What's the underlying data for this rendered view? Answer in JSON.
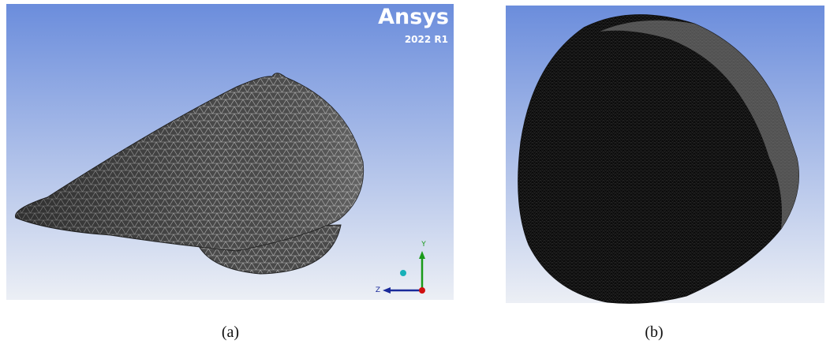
{
  "panels": [
    {
      "logo": {
        "name": "Ansys",
        "version": "2022 R1"
      },
      "axes": {
        "y": "Y",
        "z": "Z"
      },
      "caption": "(a)"
    },
    {
      "caption": "(b)"
    }
  ]
}
